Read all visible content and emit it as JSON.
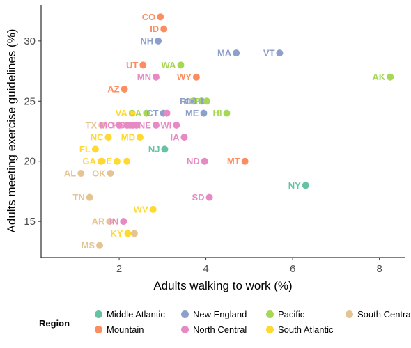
{
  "chart_data": {
    "type": "scatter",
    "xlabel": "Adults walking to work (%)",
    "ylabel": "Adults meeting exercise guidelines (%)",
    "xlim": [
      0.2,
      8.6
    ],
    "ylim": [
      12.0,
      33.0
    ],
    "x_ticks": [
      "2",
      "4",
      "6",
      "8"
    ],
    "y_ticks": [
      "15",
      "20",
      "25",
      "30"
    ],
    "grid": false,
    "legend_position": "bottom",
    "legend_title": "Region",
    "regions": [
      {
        "name": "Middle Atlantic",
        "color": "#66c2a5"
      },
      {
        "name": "Mountain",
        "color": "#fc8d62"
      },
      {
        "name": "New England",
        "color": "#8da0cb"
      },
      {
        "name": "North Central",
        "color": "#e78ac3"
      },
      {
        "name": "Pacific",
        "color": "#a6d854"
      },
      {
        "name": "South Atlantic",
        "color": "#ffd92f"
      },
      {
        "name": "South Central",
        "color": "#e5c494"
      }
    ],
    "points": [
      {
        "label": "CO",
        "x": 2.95,
        "y": 32.0,
        "region": "Mountain"
      },
      {
        "label": "ID",
        "x": 3.03,
        "y": 31.0,
        "region": "Mountain"
      },
      {
        "label": "NH",
        "x": 2.9,
        "y": 30.0,
        "region": "New England"
      },
      {
        "label": "MA",
        "x": 4.7,
        "y": 29.0,
        "region": "New England"
      },
      {
        "label": "VT",
        "x": 5.7,
        "y": 29.0,
        "region": "New England"
      },
      {
        "label": "UT",
        "x": 2.55,
        "y": 28.0,
        "region": "Mountain"
      },
      {
        "label": "WA",
        "x": 3.42,
        "y": 28.0,
        "region": "Pacific"
      },
      {
        "label": "MN",
        "x": 2.85,
        "y": 27.0,
        "region": "North Central"
      },
      {
        "label": "WY",
        "x": 3.78,
        "y": 27.0,
        "region": "Mountain"
      },
      {
        "label": "AK",
        "x": 8.25,
        "y": 27.0,
        "region": "Pacific"
      },
      {
        "label": "AZ",
        "x": 2.12,
        "y": 26.0,
        "region": "Mountain"
      },
      {
        "label": "RI",
        "x": 3.72,
        "y": 25.0,
        "region": "New England"
      },
      {
        "label": "CT",
        "x": 3.9,
        "y": 25.0,
        "region": "New England"
      },
      {
        "label": "OR",
        "x": 4.02,
        "y": 25.0,
        "region": "Pacific"
      },
      {
        "label": "VA",
        "x": 2.3,
        "y": 24.0,
        "region": "South Atlantic"
      },
      {
        "label": "CA",
        "x": 2.63,
        "y": 24.0,
        "region": "Pacific"
      },
      {
        "label": "CT",
        "x": 3.02,
        "y": 24.0,
        "region": "New England"
      },
      {
        "label": "",
        "x": 3.1,
        "y": 24.0,
        "region": "North Central"
      },
      {
        "label": "ME",
        "x": 3.95,
        "y": 24.0,
        "region": "New England"
      },
      {
        "label": "HI",
        "x": 4.48,
        "y": 24.0,
        "region": "Pacific"
      },
      {
        "label": "TX",
        "x": 1.6,
        "y": 23.0,
        "region": "South Central"
      },
      {
        "label": "MO",
        "x": 2.0,
        "y": 23.0,
        "region": "North Central"
      },
      {
        "label": "",
        "x": 2.18,
        "y": 23.0,
        "region": "North Central"
      },
      {
        "label": "KS",
        "x": 2.25,
        "y": 23.0,
        "region": "North Central"
      },
      {
        "label": "",
        "x": 2.32,
        "y": 23.0,
        "region": "North Central"
      },
      {
        "label": "",
        "x": 2.4,
        "y": 23.0,
        "region": "North Central"
      },
      {
        "label": "NE",
        "x": 2.85,
        "y": 23.0,
        "region": "North Central"
      },
      {
        "label": "WI",
        "x": 3.32,
        "y": 23.0,
        "region": "North Central"
      },
      {
        "label": "NC",
        "x": 1.75,
        "y": 22.0,
        "region": "South Atlantic"
      },
      {
        "label": "MD",
        "x": 2.48,
        "y": 22.0,
        "region": "South Atlantic"
      },
      {
        "label": "IA",
        "x": 3.5,
        "y": 22.0,
        "region": "North Central"
      },
      {
        "label": "FL",
        "x": 1.45,
        "y": 21.0,
        "region": "South Atlantic"
      },
      {
        "label": "NJ",
        "x": 3.05,
        "y": 21.0,
        "region": "Middle Atlantic"
      },
      {
        "label": "GA",
        "x": 1.58,
        "y": 20.0,
        "region": "South Atlantic"
      },
      {
        "label": "DE",
        "x": 1.95,
        "y": 20.0,
        "region": "South Atlantic"
      },
      {
        "label": "",
        "x": 2.18,
        "y": 20.0,
        "region": "South Atlantic"
      },
      {
        "label": "ND",
        "x": 3.97,
        "y": 20.0,
        "region": "North Central"
      },
      {
        "label": "MT",
        "x": 4.9,
        "y": 20.0,
        "region": "Mountain"
      },
      {
        "label": "AL",
        "x": 1.12,
        "y": 19.0,
        "region": "South Central"
      },
      {
        "label": "OK",
        "x": 1.8,
        "y": 19.0,
        "region": "South Central"
      },
      {
        "label": "NY",
        "x": 6.3,
        "y": 18.0,
        "region": "Middle Atlantic"
      },
      {
        "label": "TN",
        "x": 1.32,
        "y": 17.0,
        "region": "South Central"
      },
      {
        "label": "SD",
        "x": 4.08,
        "y": 17.0,
        "region": "North Central"
      },
      {
        "label": "WV",
        "x": 2.78,
        "y": 16.0,
        "region": "South Atlantic"
      },
      {
        "label": "AR",
        "x": 1.78,
        "y": 15.0,
        "region": "South Central"
      },
      {
        "label": "IN",
        "x": 2.1,
        "y": 15.0,
        "region": "North Central"
      },
      {
        "label": "KY",
        "x": 2.2,
        "y": 14.0,
        "region": "South Atlantic"
      },
      {
        "label": "",
        "x": 2.35,
        "y": 14.0,
        "region": "South Central"
      },
      {
        "label": "MS",
        "x": 1.55,
        "y": 13.0,
        "region": "South Central"
      }
    ]
  }
}
